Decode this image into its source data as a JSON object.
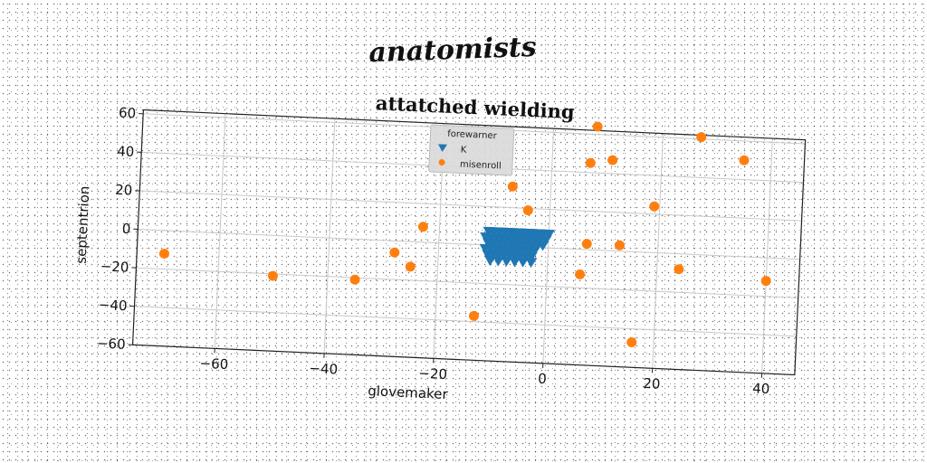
{
  "figure": {
    "suptitle": "anatomists"
  },
  "chart_data": {
    "type": "scatter",
    "title": "attatched wielding",
    "xlabel": "glovemaker",
    "ylabel": "septentrion",
    "xlim": [
      -75,
      46
    ],
    "ylim": [
      -60,
      62
    ],
    "xticks": [
      -60,
      -40,
      -20,
      0,
      20,
      40
    ],
    "yticks": [
      -60,
      -40,
      -20,
      0,
      20,
      40,
      60
    ],
    "grid": true,
    "legend": {
      "title": "forewarner",
      "placement": "top-center"
    },
    "series": [
      {
        "name": "K",
        "marker": "triangle-down",
        "color": "#1f77b4",
        "x": [
          -11,
          -10,
          -9,
          -8,
          -7,
          -6,
          -5,
          -4,
          -3,
          -2,
          -1,
          0,
          -11.5,
          -10.5,
          -9.5,
          -8.5,
          -7.5,
          -6.5,
          -5.5,
          -4.5,
          -3.5,
          -2.5,
          -1.5,
          -0.5,
          -11,
          -10,
          -9,
          -8,
          -7,
          -6,
          -5,
          -4,
          -3,
          -2,
          -1,
          -11.5,
          -10.5,
          -9.5,
          -8.5,
          -7.5,
          -6.5,
          -5.5,
          -4.5,
          -3.5,
          -2.5,
          -11,
          -10,
          -9,
          -8,
          -7,
          -6,
          -5,
          -4,
          -3,
          -10.5,
          -9,
          -7.5,
          -6,
          -4.5,
          -3
        ],
        "y": [
          7,
          7,
          7,
          7,
          7,
          7,
          7,
          7,
          7,
          7,
          7,
          7,
          4,
          4,
          4,
          4,
          4,
          4,
          4,
          4,
          4,
          4,
          4,
          4,
          1,
          1,
          1,
          1,
          1,
          1,
          1,
          1,
          1,
          1,
          1,
          -2,
          -2,
          -2,
          -2,
          -2,
          -2,
          -2,
          -2,
          -2,
          -2,
          -5,
          -5,
          -5,
          -5,
          -5,
          -5,
          -5,
          -5,
          -5,
          -8,
          -8,
          -8,
          -8,
          -8,
          -8
        ]
      },
      {
        "name": "misenroll",
        "marker": "circle",
        "color": "#ff7f0e",
        "x": [
          8,
          27,
          35,
          7,
          11,
          -7,
          -4,
          19,
          -23,
          7,
          13,
          -70,
          -50,
          -35,
          -28,
          -25,
          6,
          24,
          40,
          -13,
          16
        ],
        "y": [
          64,
          61,
          50,
          45,
          47,
          31,
          19,
          24,
          8,
          3,
          3,
          -12,
          -21,
          -21,
          -6,
          -13,
          -13,
          -8,
          -12,
          -37,
          -47
        ]
      }
    ]
  }
}
